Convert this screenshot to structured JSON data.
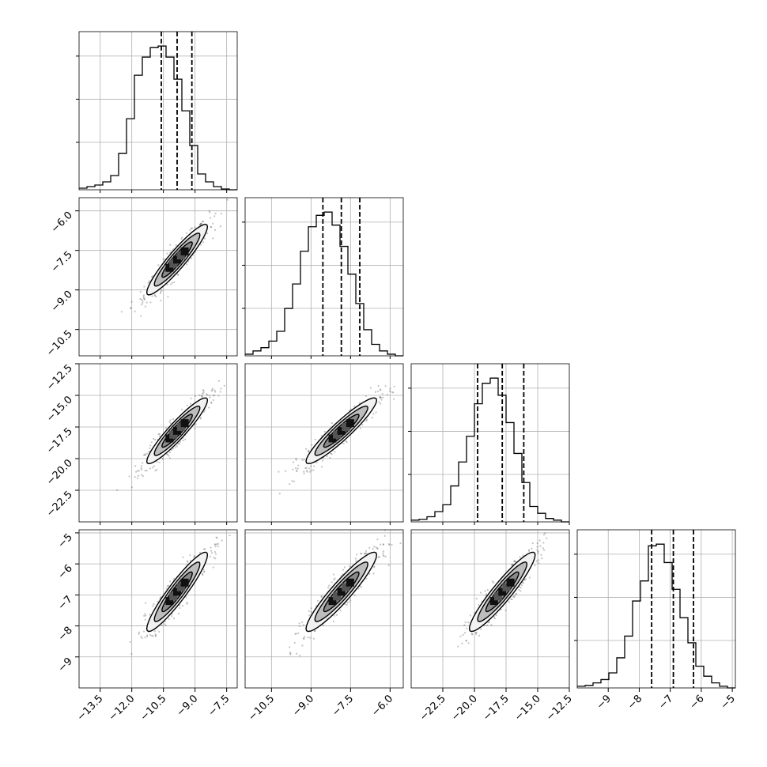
{
  "chart_data": {
    "type": "corner",
    "grid": true,
    "n_params": 4,
    "parameters": [
      {
        "range": [
          -14.5,
          -7.0
        ],
        "ticks": [
          "−13.5",
          "−12.0",
          "−10.5",
          "−9.0",
          "−7.5"
        ],
        "tick_values": [
          -13.5,
          -12.0,
          -10.5,
          -9.0,
          -7.5
        ],
        "mean": -9.85,
        "sigma": 0.72
      },
      {
        "range": [
          -11.5,
          -5.5
        ],
        "ticks": [
          "−10.5",
          "−9.0",
          "−7.5",
          "−6.0"
        ],
        "tick_values": [
          -10.5,
          -9.0,
          -7.5,
          -6.0
        ],
        "mean": -7.85,
        "sigma": 0.67
      },
      {
        "range": [
          -25.0,
          -12.5
        ],
        "ticks": [
          "−22.5",
          "−20.0",
          "−17.5",
          "−15.0",
          "−12.5"
        ],
        "tick_values": [
          -22.5,
          -20.0,
          -17.5,
          -15.0,
          -12.5
        ],
        "mean": -17.8,
        "sigma": 1.3
      },
      {
        "range": [
          -10.0,
          -4.9
        ],
        "ticks": [
          "−9",
          "−8",
          "−7",
          "−6",
          "−5"
        ],
        "tick_values": [
          -9,
          -8,
          -7,
          -6,
          -5
        ],
        "mean": -6.9,
        "sigma": 0.64
      }
    ],
    "histograms": [
      {
        "bins": 20,
        "counts": [
          2,
          4,
          6,
          10,
          18,
          46,
          90,
          145,
          168,
          180,
          182,
          168,
          140,
          100,
          56,
          20,
          10,
          4,
          1,
          0
        ],
        "quantiles": [
          -10.6,
          -9.85,
          -9.15
        ]
      },
      {
        "bins": 20,
        "counts": [
          2,
          6,
          10,
          18,
          30,
          58,
          88,
          128,
          158,
          172,
          176,
          160,
          134,
          100,
          64,
          32,
          14,
          6,
          2,
          0
        ],
        "quantiles": [
          -8.55,
          -7.85,
          -7.15
        ]
      },
      {
        "bins": 20,
        "counts": [
          2,
          3,
          6,
          12,
          20,
          42,
          70,
          100,
          138,
          162,
          168,
          148,
          116,
          80,
          46,
          18,
          10,
          4,
          2,
          0
        ],
        "quantiles": [
          -19.75,
          -17.8,
          -16.1
        ]
      },
      {
        "bins": 20,
        "counts": [
          2,
          3,
          6,
          10,
          18,
          36,
          62,
          104,
          128,
          170,
          172,
          150,
          118,
          84,
          54,
          26,
          14,
          6,
          2,
          0
        ],
        "quantiles": [
          -7.6,
          -6.9,
          -6.25
        ]
      }
    ],
    "correlation": 0.93,
    "contour_levels": [
      0.5,
      1.0,
      1.5,
      2.0
    ]
  }
}
